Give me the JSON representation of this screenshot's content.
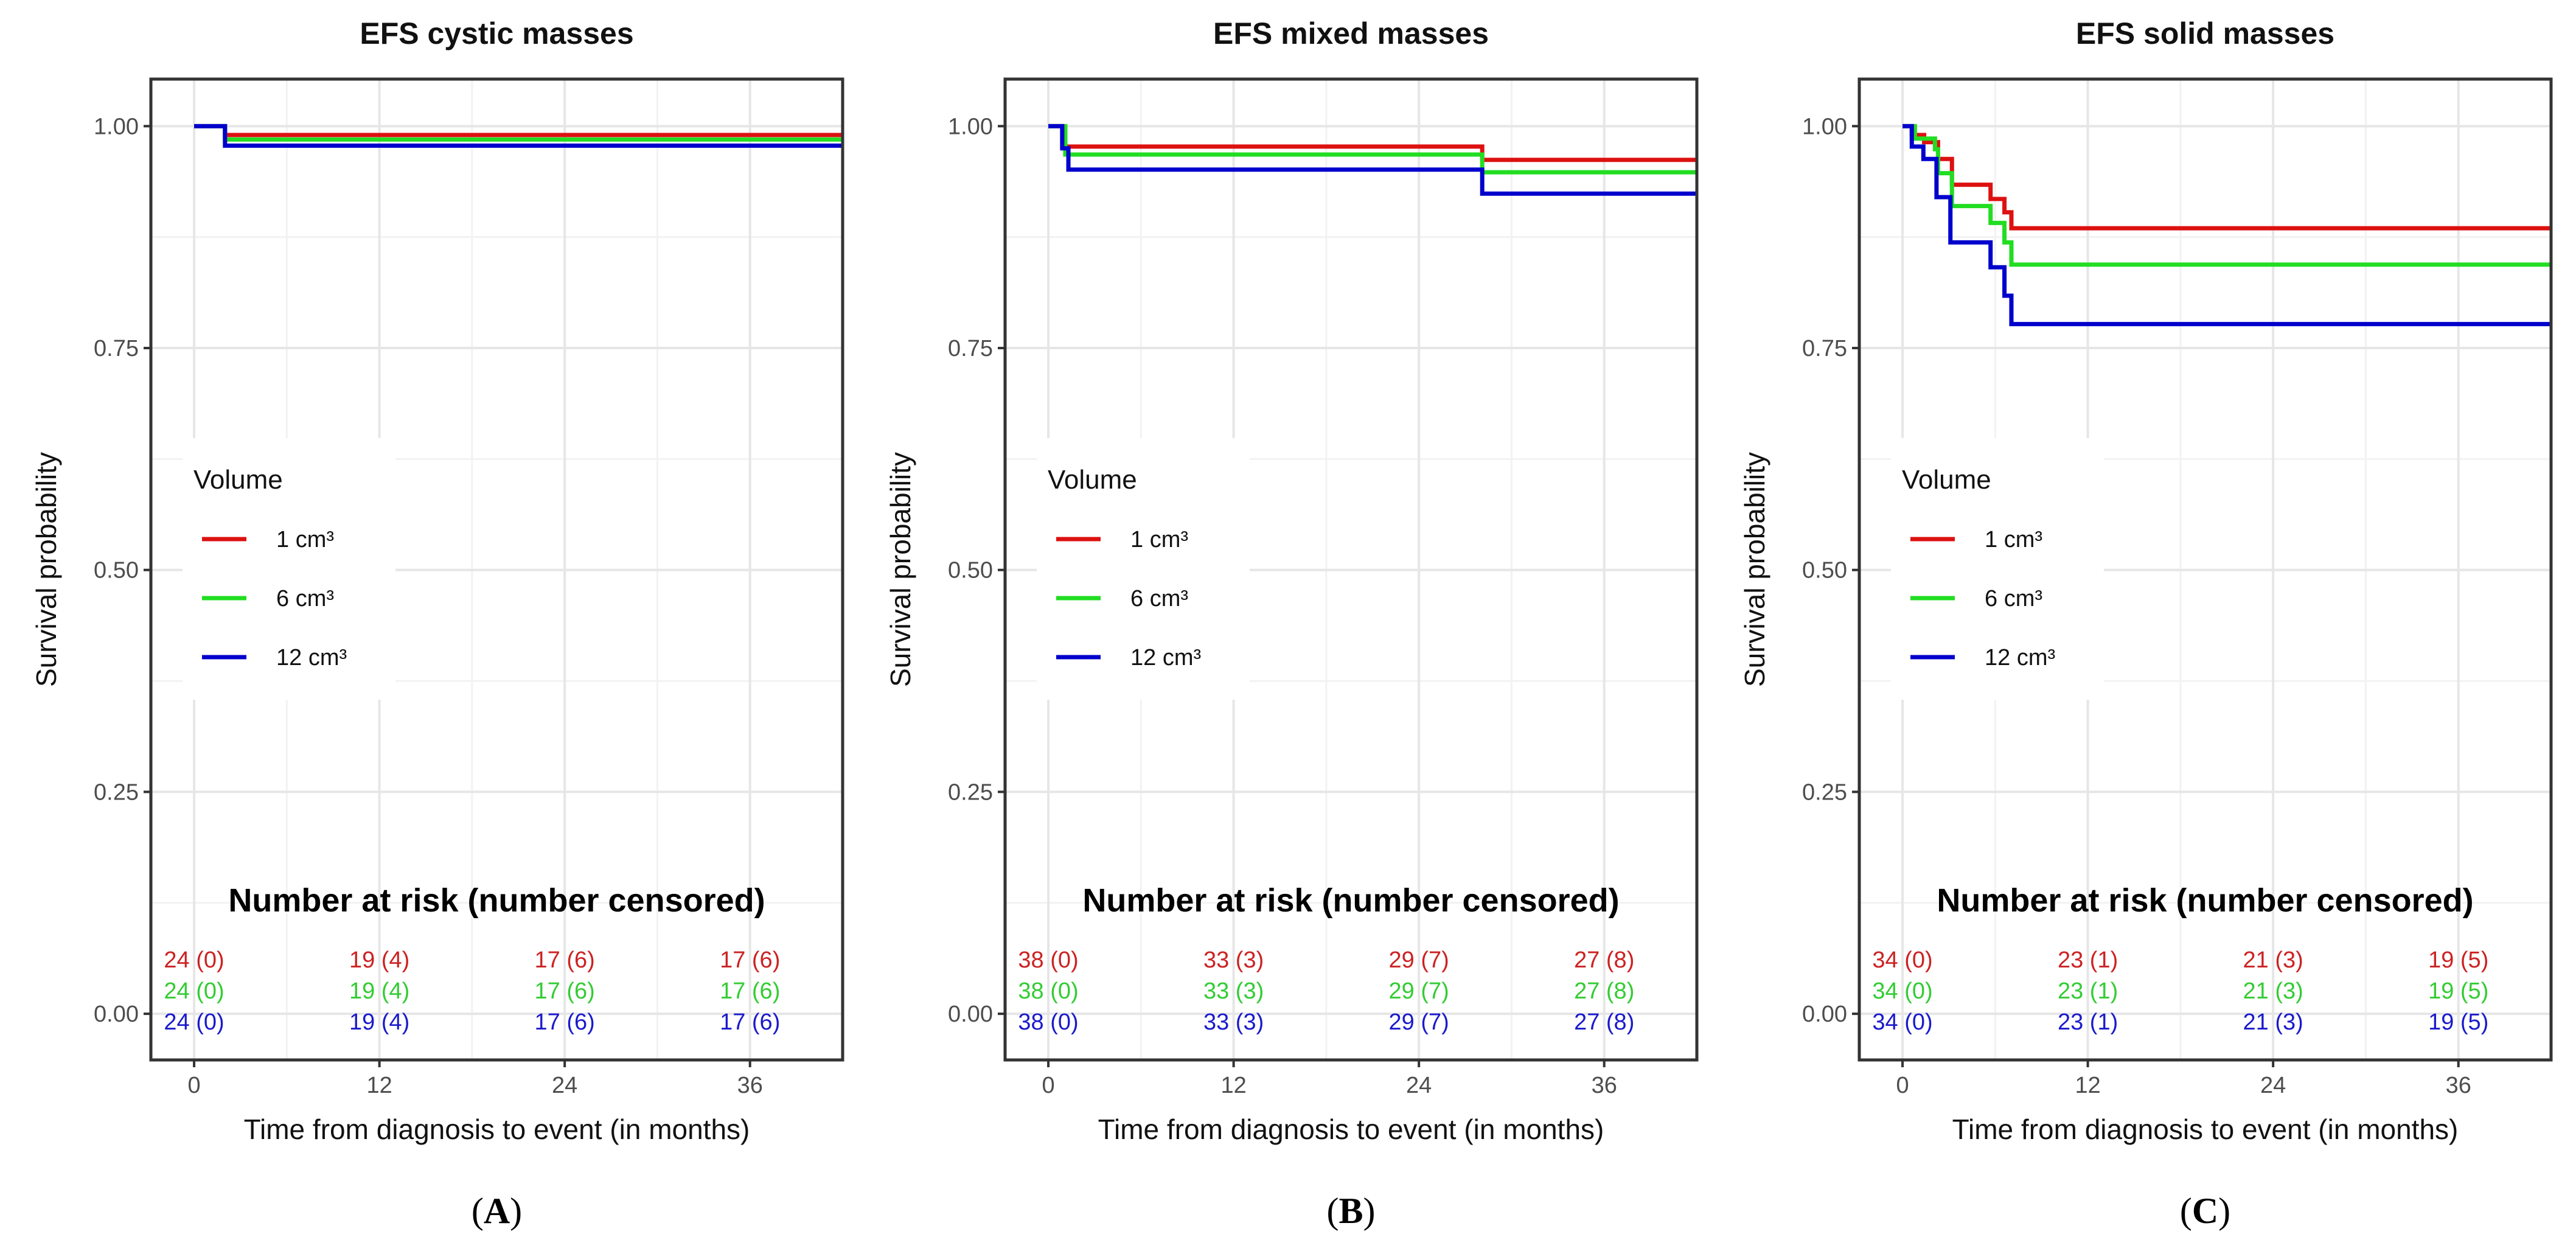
{
  "chart_data": [
    {
      "type": "line",
      "panel_label": "(A)",
      "panel_letter": "A",
      "title": "EFS cystic masses",
      "xlabel": "Time from diagnosis to event (in months)",
      "ylabel": "Survival probability",
      "xlim": [
        -2.8,
        42
      ],
      "ylim": [
        -0.052,
        1.053
      ],
      "xticks": [
        "0",
        "12",
        "24",
        "36"
      ],
      "yticks": [
        "0.00",
        "0.25",
        "0.50",
        "0.75",
        "1.00"
      ],
      "grid": true,
      "legend": {
        "title": "Volume",
        "placement": "center-left",
        "labels": [
          "1 cm³",
          "6 cm³",
          "12 cm³"
        ]
      },
      "series": [
        {
          "name": "1 cm³",
          "color": "#dd1111",
          "steps": [
            [
              0,
              1.0
            ],
            [
              2.0,
              0.99
            ]
          ]
        },
        {
          "name": "6 cm³",
          "color": "#22dd22",
          "steps": [
            [
              0,
              1.0
            ],
            [
              2.0,
              0.985
            ]
          ]
        },
        {
          "name": "12 cm³",
          "color": "#0000cc",
          "steps": [
            [
              0,
              1.0
            ],
            [
              2.0,
              0.978
            ]
          ]
        }
      ],
      "risk_table": {
        "title": "Number at risk (number censored)",
        "times": [
          0,
          12,
          24,
          36
        ],
        "rows": [
          {
            "color": "#cc2222",
            "cells": [
              "24 (0)",
              "19 (4)",
              "17 (6)",
              "17 (6)"
            ]
          },
          {
            "color": "#33cc33",
            "cells": [
              "24 (0)",
              "19 (4)",
              "17 (6)",
              "17 (6)"
            ]
          },
          {
            "color": "#1a1acc",
            "cells": [
              "24 (0)",
              "19 (4)",
              "17 (6)",
              "17 (6)"
            ]
          }
        ]
      }
    },
    {
      "type": "line",
      "panel_label": "(B)",
      "panel_letter": "B",
      "title": "EFS mixed masses",
      "xlabel": "Time from diagnosis to event (in months)",
      "ylabel": "Survival probability",
      "xlim": [
        -2.8,
        42
      ],
      "ylim": [
        -0.052,
        1.053
      ],
      "xticks": [
        "0",
        "12",
        "24",
        "36"
      ],
      "yticks": [
        "0.00",
        "0.25",
        "0.50",
        "0.75",
        "1.00"
      ],
      "grid": true,
      "legend": {
        "title": "Volume",
        "placement": "center-left",
        "labels": [
          "1 cm³",
          "6 cm³",
          "12 cm³"
        ]
      },
      "series": [
        {
          "name": "1 cm³",
          "color": "#dd1111",
          "steps": [
            [
              0,
              1.0
            ],
            [
              0.9,
              0.977
            ],
            [
              28.1,
              0.962
            ]
          ]
        },
        {
          "name": "6 cm³",
          "color": "#22dd22",
          "steps": [
            [
              0,
              1.0
            ],
            [
              1.1,
              0.968
            ],
            [
              28.1,
              0.948
            ]
          ]
        },
        {
          "name": "12 cm³",
          "color": "#0000cc",
          "steps": [
            [
              0,
              1.0
            ],
            [
              0.9,
              0.975
            ],
            [
              1.3,
              0.951
            ],
            [
              28.1,
              0.924
            ]
          ]
        }
      ],
      "risk_table": {
        "title": "Number at risk (number censored)",
        "times": [
          0,
          12,
          24,
          36
        ],
        "rows": [
          {
            "color": "#cc2222",
            "cells": [
              "38 (0)",
              "33 (3)",
              "29 (7)",
              "27 (8)"
            ]
          },
          {
            "color": "#33cc33",
            "cells": [
              "38 (0)",
              "33 (3)",
              "29 (7)",
              "27 (8)"
            ]
          },
          {
            "color": "#1a1acc",
            "cells": [
              "38 (0)",
              "33 (3)",
              "29 (7)",
              "27 (8)"
            ]
          }
        ]
      }
    },
    {
      "type": "line",
      "panel_label": "(C)",
      "panel_letter": "C",
      "title": "EFS solid masses",
      "xlabel": "Time from diagnosis to event (in months)",
      "ylabel": "Survival probability",
      "xlim": [
        -2.8,
        42
      ],
      "ylim": [
        -0.052,
        1.053
      ],
      "xticks": [
        "0",
        "12",
        "24",
        "36"
      ],
      "yticks": [
        "0.00",
        "0.25",
        "0.50",
        "0.75",
        "1.00"
      ],
      "grid": true,
      "legend": {
        "title": "Volume",
        "placement": "center-left",
        "labels": [
          "1 cm³",
          "6 cm³",
          "12 cm³"
        ]
      },
      "series": [
        {
          "name": "1 cm³",
          "color": "#dd1111",
          "steps": [
            [
              0,
              1.0
            ],
            [
              0.6,
              0.99
            ],
            [
              1.4,
              0.982
            ],
            [
              2.3,
              0.963
            ],
            [
              3.2,
              0.934
            ],
            [
              5.7,
              0.918
            ],
            [
              6.6,
              0.903
            ],
            [
              7.05,
              0.885
            ]
          ]
        },
        {
          "name": "6 cm³",
          "color": "#22dd22",
          "steps": [
            [
              0,
              1.0
            ],
            [
              0.8,
              0.986
            ],
            [
              2.1,
              0.974
            ],
            [
              2.3,
              0.947
            ],
            [
              3.2,
              0.91
            ],
            [
              5.7,
              0.891
            ],
            [
              6.6,
              0.869
            ],
            [
              7.05,
              0.844
            ]
          ]
        },
        {
          "name": "12 cm³",
          "color": "#0000cc",
          "steps": [
            [
              0,
              1.0
            ],
            [
              0.6,
              0.977
            ],
            [
              1.35,
              0.963
            ],
            [
              2.2,
              0.92
            ],
            [
              3.1,
              0.869
            ],
            [
              5.7,
              0.841
            ],
            [
              6.6,
              0.809
            ],
            [
              7.05,
              0.777
            ]
          ]
        }
      ],
      "risk_table": {
        "title": "Number at risk (number censored)",
        "times": [
          0,
          12,
          24,
          36
        ],
        "rows": [
          {
            "color": "#cc2222",
            "cells": [
              "34 (0)",
              "23 (1)",
              "21 (3)",
              "19 (5)"
            ]
          },
          {
            "color": "#33cc33",
            "cells": [
              "34 (0)",
              "23 (1)",
              "21 (3)",
              "19 (5)"
            ]
          },
          {
            "color": "#1a1acc",
            "cells": [
              "34 (0)",
              "23 (1)",
              "21 (3)",
              "19 (5)"
            ]
          }
        ]
      }
    }
  ]
}
